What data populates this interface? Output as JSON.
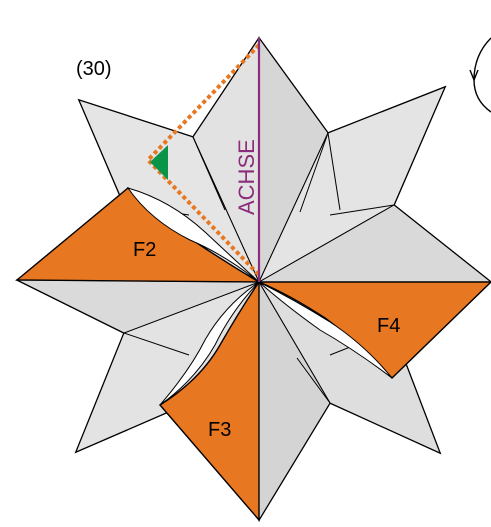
{
  "step": {
    "number": "(30)"
  },
  "labels": {
    "axis": "ACHSE",
    "flap_2": "F2",
    "flap_3": "F3",
    "flap_4": "F4"
  },
  "colors": {
    "paper": "#dcdcdc",
    "paper_light": "#e6e6e6",
    "flap": "#e87722",
    "axis_line": "#8b2d7a",
    "fold_hint": "#e87722",
    "marker": "#0a9447",
    "outline": "#000000"
  },
  "icons": {
    "rotate": "rotate-arrow-icon",
    "marker": "triangle-marker-icon"
  }
}
